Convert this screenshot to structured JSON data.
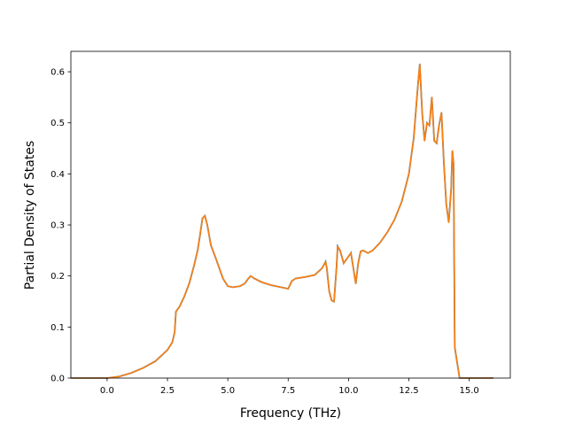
{
  "chart_data": {
    "type": "line",
    "title": "",
    "xlabel": "Frequency (THz)",
    "ylabel": "Partial Density of States",
    "xlim": [
      -1.5,
      16.7
    ],
    "ylim": [
      0,
      0.64
    ],
    "xticks": [
      0.0,
      2.5,
      5.0,
      7.5,
      10.0,
      12.5,
      15.0
    ],
    "yticks": [
      0.0,
      0.1,
      0.2,
      0.3,
      0.4,
      0.5,
      0.6
    ],
    "xtick_labels": [
      "0.0",
      "2.5",
      "5.0",
      "7.5",
      "10.0",
      "12.5",
      "15.0"
    ],
    "ytick_labels": [
      "0.0",
      "0.1",
      "0.2",
      "0.3",
      "0.4",
      "0.5",
      "0.6"
    ],
    "grid": false,
    "legend": "none",
    "series": [
      {
        "color": "#ff7f0e",
        "underlay_color": "#1f77b4",
        "x": [
          -1.5,
          -0.5,
          0.0,
          0.5,
          1.0,
          1.5,
          2.0,
          2.5,
          2.7,
          2.8,
          2.85,
          3.0,
          3.2,
          3.4,
          3.6,
          3.75,
          3.85,
          3.95,
          4.05,
          4.15,
          4.3,
          4.5,
          4.8,
          5.0,
          5.2,
          5.5,
          5.7,
          5.85,
          5.95,
          6.1,
          6.4,
          6.8,
          7.2,
          7.5,
          7.65,
          7.8,
          8.2,
          8.6,
          8.9,
          9.05,
          9.1,
          9.2,
          9.3,
          9.4,
          9.5,
          9.55,
          9.65,
          9.8,
          9.95,
          10.1,
          10.2,
          10.3,
          10.4,
          10.5,
          10.6,
          10.8,
          11.0,
          11.3,
          11.6,
          11.9,
          12.2,
          12.5,
          12.7,
          12.85,
          12.95,
          13.05,
          13.15,
          13.25,
          13.35,
          13.45,
          13.55,
          13.65,
          13.75,
          13.85,
          13.95,
          14.05,
          14.15,
          14.25,
          14.3,
          14.35,
          14.4,
          14.5,
          14.6,
          15.0,
          16.0
        ],
        "y": [
          0.0,
          0.0,
          0.0,
          0.003,
          0.01,
          0.02,
          0.033,
          0.055,
          0.07,
          0.09,
          0.13,
          0.14,
          0.16,
          0.185,
          0.22,
          0.25,
          0.28,
          0.313,
          0.318,
          0.3,
          0.26,
          0.235,
          0.195,
          0.18,
          0.178,
          0.18,
          0.185,
          0.195,
          0.2,
          0.195,
          0.188,
          0.182,
          0.178,
          0.175,
          0.19,
          0.195,
          0.198,
          0.202,
          0.215,
          0.228,
          0.215,
          0.17,
          0.152,
          0.15,
          0.215,
          0.258,
          0.25,
          0.225,
          0.235,
          0.245,
          0.215,
          0.185,
          0.225,
          0.248,
          0.25,
          0.245,
          0.25,
          0.265,
          0.285,
          0.31,
          0.345,
          0.4,
          0.47,
          0.56,
          0.615,
          0.52,
          0.465,
          0.5,
          0.495,
          0.55,
          0.465,
          0.46,
          0.495,
          0.52,
          0.42,
          0.34,
          0.305,
          0.37,
          0.445,
          0.42,
          0.06,
          0.03,
          0.0,
          0.0,
          0.0
        ]
      }
    ]
  }
}
